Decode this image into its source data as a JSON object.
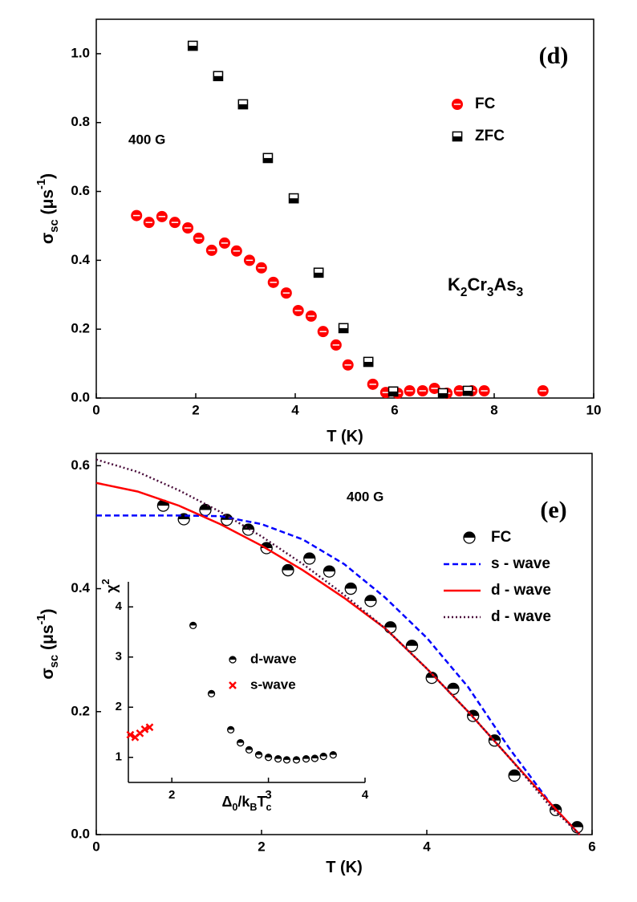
{
  "chart_data": [
    {
      "type": "scatter",
      "panel_label": "(d)",
      "annotations": [
        "400 G"
      ],
      "formula": [
        {
          "text": "K"
        },
        {
          "text": "2",
          "shift": "sub"
        },
        {
          "text": "Cr"
        },
        {
          "text": "3",
          "shift": "sub"
        },
        {
          "text": "As"
        },
        {
          "text": "3",
          "shift": "sub"
        }
      ],
      "xlabel": [
        {
          "text": "T (K)"
        }
      ],
      "ylabel": [
        {
          "text": "σ"
        },
        {
          "text": "sc",
          "shift": "sub"
        },
        {
          "text": " (μs"
        },
        {
          "text": "-1",
          "shift": "sup"
        },
        {
          "text": ")"
        }
      ],
      "xlim": [
        0,
        10
      ],
      "xticks": [
        0,
        2,
        4,
        6,
        8,
        10
      ],
      "ylim": [
        0,
        1.1
      ],
      "yticks": [
        {
          "value": 0,
          "label": "0.0"
        },
        {
          "value": 0.2,
          "label": "0.2"
        },
        {
          "value": 0.4,
          "label": "0.4"
        },
        {
          "value": 0.6,
          "label": "0.6"
        },
        {
          "value": 0.8,
          "label": "0.8"
        },
        {
          "value": 1,
          "label": "1.0"
        }
      ],
      "legend": "upper right",
      "series": [
        {
          "name": "FC",
          "color": "#ff0000",
          "marker": "circle-split",
          "x": [
            0.81,
            1.06,
            1.32,
            1.58,
            1.84,
            2.06,
            2.32,
            2.58,
            2.82,
            3.08,
            3.32,
            3.56,
            3.82,
            4.06,
            4.32,
            4.56,
            4.82,
            5.06,
            5.56,
            5.82,
            6.06,
            6.3,
            6.56,
            6.8,
            7.05,
            7.3,
            7.55,
            7.8,
            8.98
          ],
          "values": [
            0.53,
            0.51,
            0.527,
            0.51,
            0.494,
            0.464,
            0.429,
            0.45,
            0.427,
            0.4,
            0.378,
            0.336,
            0.305,
            0.254,
            0.238,
            0.193,
            0.154,
            0.096,
            0.04,
            0.016,
            0.014,
            0.021,
            0.021,
            0.028,
            0.014,
            0.021,
            0.021,
            0.021,
            0.021
          ]
        },
        {
          "name": "ZFC",
          "color": "#000000",
          "marker": "square",
          "x": [
            1.94,
            2.45,
            2.95,
            3.45,
            3.97,
            4.47,
            4.97,
            5.47,
            5.97,
            6.97,
            7.47
          ],
          "values": [
            1.023,
            0.935,
            0.853,
            0.697,
            0.58,
            0.364,
            0.203,
            0.105,
            0.019,
            0.014,
            0.021
          ]
        }
      ]
    },
    {
      "type": "scatter",
      "panel_label": "(e)",
      "annotations": [
        "400 G"
      ],
      "xlabel": [
        {
          "text": "T (K)"
        }
      ],
      "ylabel": [
        {
          "text": "σ"
        },
        {
          "text": "sc",
          "shift": "sub"
        },
        {
          "text": " (μs"
        },
        {
          "text": "-1",
          "shift": "sup"
        },
        {
          "text": ")"
        }
      ],
      "xlim": [
        0,
        6
      ],
      "xticks": [
        0,
        2,
        4,
        6
      ],
      "ylim": [
        0,
        0.62
      ],
      "yticks": [
        {
          "value": 0,
          "label": "0.0"
        },
        {
          "value": 0.2,
          "label": "0.2"
        },
        {
          "value": 0.4,
          "label": "0.4"
        },
        {
          "value": 0.6,
          "label": "0.6"
        }
      ],
      "legend": "upper right",
      "series": [
        {
          "name": "FC",
          "color": "#000000",
          "marker": "circle-half",
          "x": [
            0.81,
            1.06,
            1.32,
            1.58,
            1.84,
            2.06,
            2.32,
            2.58,
            2.82,
            3.08,
            3.32,
            3.56,
            3.82,
            4.06,
            4.32,
            4.56,
            4.82,
            5.06,
            5.56,
            5.82
          ],
          "values": [
            0.535,
            0.513,
            0.528,
            0.512,
            0.496,
            0.466,
            0.43,
            0.449,
            0.428,
            0.4,
            0.38,
            0.337,
            0.307,
            0.255,
            0.237,
            0.193,
            0.153,
            0.096,
            0.04,
            0.012
          ]
        },
        {
          "name": "s - wave",
          "color": "#0000ff",
          "line": "dashed",
          "x": [
            0,
            0.5,
            1,
            1.5,
            2,
            2.5,
            3,
            3.5,
            4,
            4.5,
            5,
            5.5,
            5.85
          ],
          "values": [
            0.519,
            0.519,
            0.519,
            0.518,
            0.505,
            0.48,
            0.44,
            0.385,
            0.32,
            0.24,
            0.14,
            0.05,
            0
          ]
        },
        {
          "name": "d - wave",
          "color": "#ff0000",
          "line": "solid",
          "x": [
            0,
            0.5,
            1,
            1.5,
            2,
            2.5,
            3,
            3.5,
            4,
            4.5,
            5,
            5.5,
            5.85
          ],
          "values": [
            0.572,
            0.558,
            0.535,
            0.505,
            0.47,
            0.43,
            0.385,
            0.335,
            0.27,
            0.2,
            0.125,
            0.05,
            0
          ]
        },
        {
          "name": "d - wave",
          "color": "#4b0f3c",
          "line": "dotted",
          "x": [
            0,
            0.5,
            1,
            1.5,
            2,
            2.5,
            3,
            3.5,
            4,
            4.5,
            5,
            5.5,
            5.85
          ],
          "values": [
            0.61,
            0.59,
            0.56,
            0.525,
            0.485,
            0.44,
            0.39,
            0.335,
            0.27,
            0.2,
            0.125,
            0.045,
            0
          ]
        }
      ]
    },
    {
      "type": "scatter",
      "xlabel": [
        {
          "text": "Δ"
        },
        {
          "text": "0",
          "shift": "sub"
        },
        {
          "text": "/k"
        },
        {
          "text": "B",
          "shift": "sub"
        },
        {
          "text": "T"
        },
        {
          "text": "c",
          "shift": "sub"
        }
      ],
      "ylabel": [
        {
          "text": "χ"
        },
        {
          "text": "2",
          "shift": "sup"
        }
      ],
      "xlim": [
        1.55,
        4
      ],
      "xticks": [
        2,
        3,
        4
      ],
      "ylim": [
        0.5,
        4.5
      ],
      "yticks": [
        1,
        2,
        3,
        4
      ],
      "legend": "center",
      "series": [
        {
          "name": "d-wave",
          "color": "#000000",
          "marker": "circle-half",
          "x": [
            2.22,
            2.41,
            2.61,
            2.71,
            2.8,
            2.9,
            3.0,
            3.1,
            3.19,
            3.29,
            3.39,
            3.48,
            3.57,
            3.67
          ],
          "values": [
            3.63,
            2.27,
            1.55,
            1.29,
            1.15,
            1.05,
            1.0,
            0.97,
            0.95,
            0.95,
            0.97,
            0.98,
            1.02,
            1.05
          ]
        },
        {
          "name": "s-wave",
          "color": "#ff0000",
          "marker": "x",
          "x": [
            1.57,
            1.62,
            1.67,
            1.72,
            1.77
          ],
          "values": [
            1.45,
            1.4,
            1.48,
            1.56,
            1.6
          ]
        }
      ]
    }
  ]
}
